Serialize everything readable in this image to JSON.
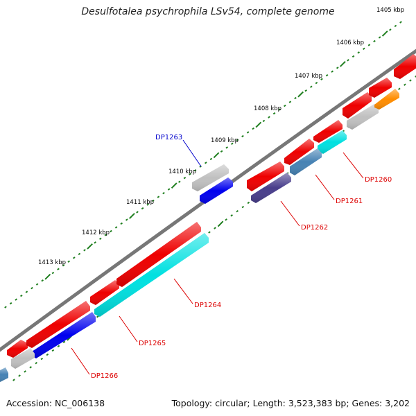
{
  "title": "Desulfotalea psychrophila LSv54, complete genome",
  "footer": {
    "accession": "Accession: NC_006138",
    "summary": "Topology: circular; Length: 3,523,383 bp; Genes: 3,202"
  },
  "colors": {
    "backbone": "#777777",
    "ticks": "#1f7f1f",
    "label_red": "#dd0000",
    "label_blue": "#0000cc"
  },
  "kbp_labels": [
    "1405 kbp",
    "1406 kbp",
    "1407 kbp",
    "1408 kbp",
    "1409 kbp",
    "1410 kbp",
    "1411 kbp",
    "1412 kbp",
    "1413 kbp"
  ],
  "gene_labels": [
    {
      "text": "DP1260",
      "color": "red"
    },
    {
      "text": "DP1261",
      "color": "red"
    },
    {
      "text": "DP1262",
      "color": "red"
    },
    {
      "text": "DP1263",
      "color": "blue"
    },
    {
      "text": "DP1264",
      "color": "red"
    },
    {
      "text": "DP1265",
      "color": "red"
    },
    {
      "text": "DP1266",
      "color": "red"
    }
  ],
  "genes": [
    {
      "color": "#ee0000",
      "direction": "plus"
    },
    {
      "color": "#ee0000",
      "direction": "plus"
    },
    {
      "color": "#ee0000",
      "direction": "plus"
    },
    {
      "color": "#ee0000",
      "direction": "plus"
    },
    {
      "color": "#ee0000",
      "direction": "plus"
    },
    {
      "color": "#ee0000",
      "direction": "plus"
    },
    {
      "color": "#ee0000",
      "direction": "plus"
    },
    {
      "color": "#ee0000",
      "direction": "plus"
    },
    {
      "color": "#ee0000",
      "direction": "plus"
    },
    {
      "color": "#ee0000",
      "direction": "plus"
    },
    {
      "color": "#c0c0c0",
      "direction": "plus"
    },
    {
      "color": "#ff8c00",
      "direction": "plus"
    },
    {
      "color": "#00e0e0",
      "direction": "plus"
    },
    {
      "color": "#4682b4",
      "direction": "plus"
    },
    {
      "color": "#483d8b",
      "direction": "plus"
    },
    {
      "color": "#00e0e0",
      "direction": "plus"
    },
    {
      "color": "#0000ee",
      "direction": "plus"
    },
    {
      "color": "#c0c0c0",
      "direction": "plus"
    },
    {
      "color": "#4682b4",
      "direction": "plus"
    },
    {
      "color": "#c0c0c0",
      "direction": "plus"
    },
    {
      "color": "#0000ee",
      "direction": "plus"
    }
  ]
}
